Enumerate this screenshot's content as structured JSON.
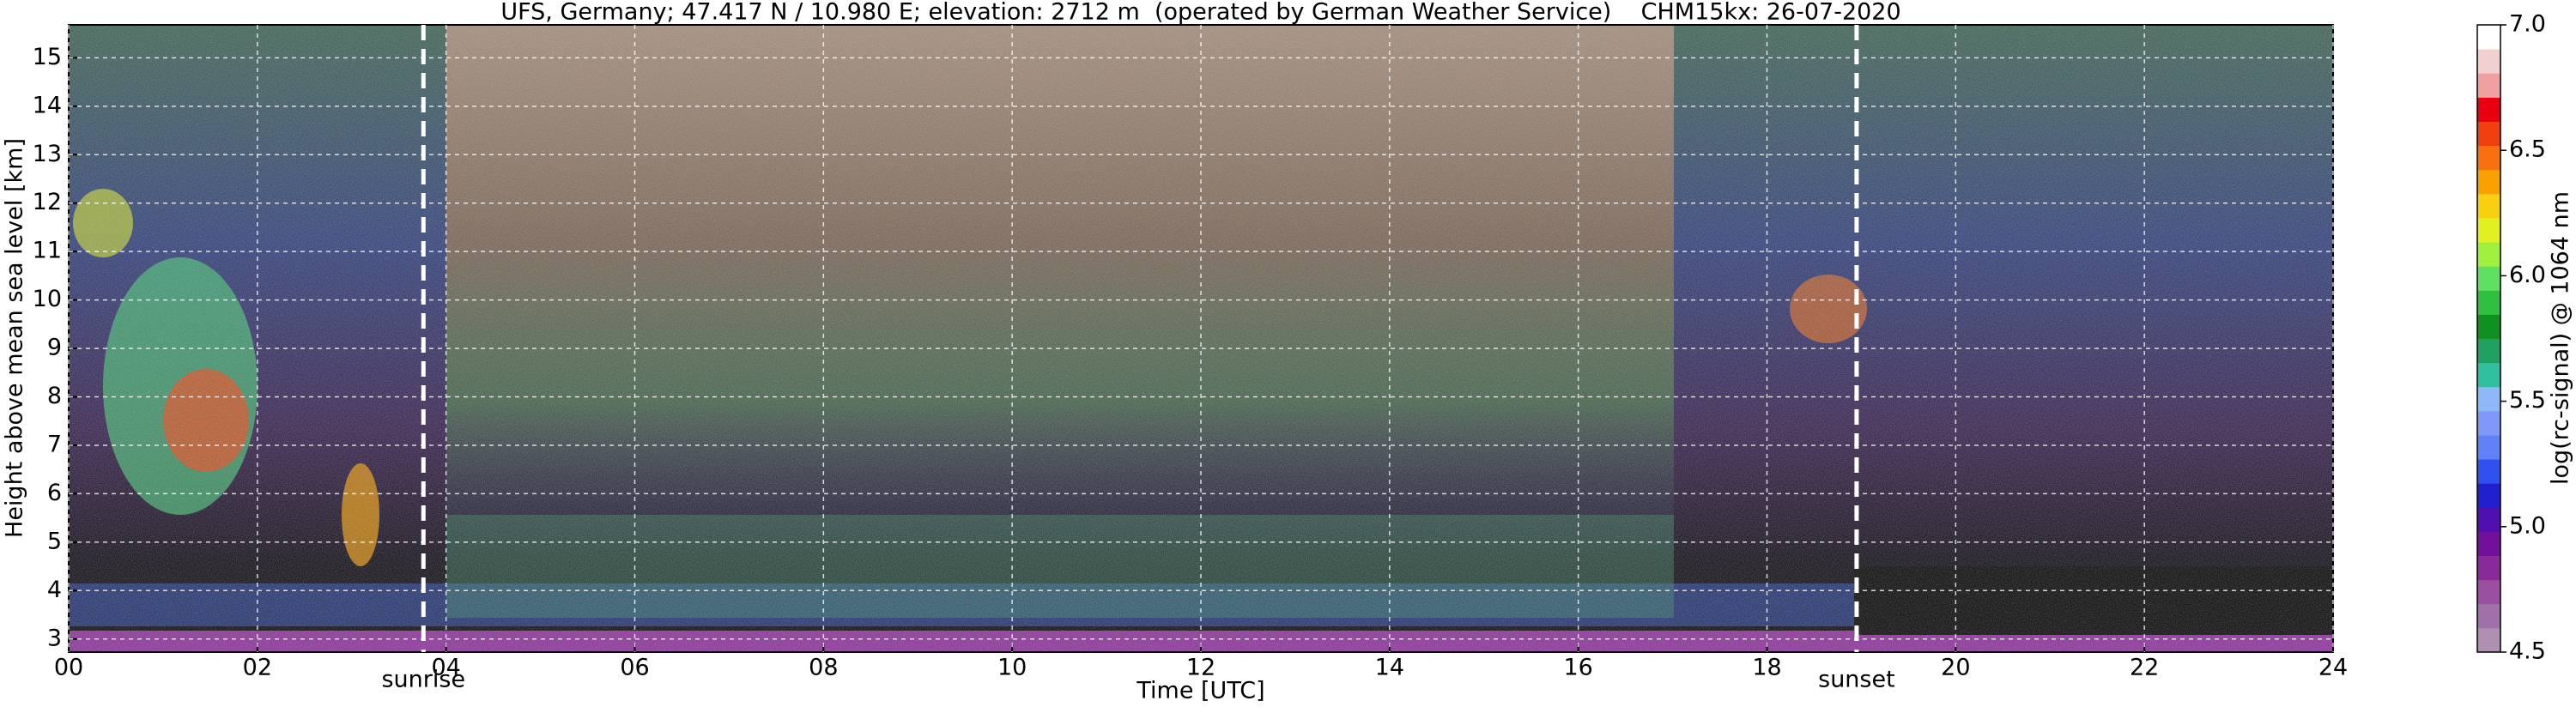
{
  "chart_data": {
    "type": "heatmap",
    "title": "UFS, Germany; 47.417 N / 10.980 E; elevation: 2712 m  (operated by German Weather Service)    CHM15kx: 26-07-2020",
    "x_label": "Time [UTC]",
    "y_label": "Height above mean sea level [km]",
    "xlim": [
      0,
      24
    ],
    "xticks": [
      {
        "value": 0,
        "label": "00"
      },
      {
        "value": 2,
        "label": "02"
      },
      {
        "value": 4,
        "label": "04"
      },
      {
        "value": 6,
        "label": "06"
      },
      {
        "value": 8,
        "label": "08"
      },
      10,
      12,
      14,
      16,
      18,
      20,
      22,
      24
    ],
    "ylim": [
      2.73,
      15.68
    ],
    "yticks": [
      3,
      4,
      5,
      6,
      7,
      8,
      9,
      10,
      11,
      12,
      13,
      14,
      15
    ],
    "grid": true,
    "annotations": [
      {
        "text": "sunrise",
        "x": 3.76
      },
      {
        "text": "sunset",
        "x": 18.95
      }
    ],
    "colorbar": {
      "label": "log(rc-signal) @ 1064 nm",
      "lim": [
        4.5,
        7.0
      ],
      "ticks": [
        {
          "value": 4.5,
          "label": "4.5"
        },
        {
          "value": 5.0,
          "label": "5.0"
        },
        {
          "value": 5.5,
          "label": "5.5"
        },
        {
          "value": 6.0,
          "label": "6.0"
        },
        {
          "value": 6.5,
          "label": "6.5"
        },
        {
          "value": 7.0,
          "label": "7.0"
        }
      ],
      "colors": [
        "#b090b0",
        "#a070a8",
        "#9a509e",
        "#8a2a9a",
        "#70109a",
        "#5010b0",
        "#2020d0",
        "#3050f0",
        "#6080f8",
        "#8098f8",
        "#90b8f8",
        "#30c0a0",
        "#20a060",
        "#109020",
        "#30c040",
        "#60e060",
        "#a0f040",
        "#e0f020",
        "#f8d010",
        "#f8a000",
        "#f87010",
        "#f04010",
        "#e80010",
        "#f0a0a0",
        "#f0d0d0",
        "#ffffff"
      ]
    }
  }
}
